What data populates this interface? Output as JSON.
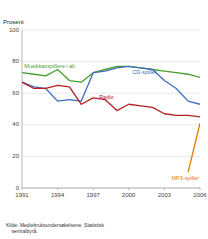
{
  "chart_data": {
    "type": "line",
    "y_label": "Prosent",
    "footnote": "Kilde: Mediebruksundersøkelsene, Statistisk\n    sentralbyrå.",
    "x": [
      1991,
      1992,
      1993,
      1994,
      1995,
      1996,
      1997,
      1998,
      1999,
      2000,
      2001,
      2002,
      2003,
      2004,
      2005,
      2006
    ],
    "series": [
      {
        "color": "#4a9c2e",
        "values": [
          73,
          72,
          71,
          75,
          68,
          67,
          73,
          75,
          77,
          77,
          76,
          75,
          74,
          73,
          72,
          70
        ]
      },
      {
        "color": "#3e6dbf",
        "values": [
          67,
          64,
          63,
          55,
          56,
          55,
          73,
          74,
          76,
          77,
          76,
          75,
          68,
          63,
          55,
          53
        ]
      },
      {
        "color": "#b22222",
        "values": [
          67,
          63,
          63,
          65,
          64,
          53,
          57,
          56,
          49,
          53,
          52,
          51,
          47,
          46,
          46,
          45
        ]
      },
      {
        "color": "#e87800",
        "values": [
          null,
          null,
          null,
          null,
          null,
          null,
          null,
          null,
          null,
          null,
          null,
          null,
          null,
          null,
          10,
          41
        ]
      }
    ],
    "annotations": [
      {
        "text": "Musikkavspillere i alt",
        "x": 1991.2,
        "y": 75.5,
        "color": "#4a9c2e"
      },
      {
        "text": "CD-spiller",
        "x": 2000.3,
        "y": 71.5,
        "color": "#3e6dbf"
      },
      {
        "text": "Radio",
        "x": 1997.5,
        "y": 56.0,
        "color": "#b22222"
      },
      {
        "text": "MP3-spiller",
        "x": 2003.6,
        "y": 4.5,
        "color": "#e87800"
      }
    ],
    "xlim": [
      1991,
      2006
    ],
    "ylim": [
      0,
      100
    ],
    "xticks": [
      1991,
      1994,
      1997,
      2000,
      2003,
      2006
    ],
    "yticks": [
      0,
      20,
      40,
      60,
      80,
      100
    ],
    "grid": true
  }
}
